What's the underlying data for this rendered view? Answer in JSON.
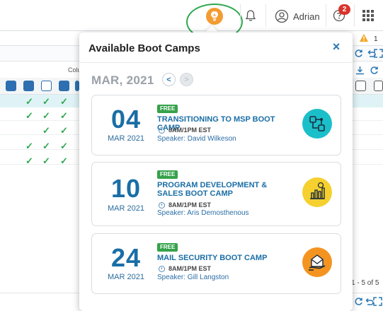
{
  "header": {
    "user_name": "Adrian",
    "help_badge_count": "2",
    "icons": [
      "lightbulb-icon",
      "bell-icon",
      "user-icon",
      "help-icon",
      "apps-grid-icon"
    ]
  },
  "background": {
    "column_label": "Colu",
    "warning_count": "1",
    "pager_text": "1 - 5 of 5"
  },
  "panel": {
    "title": "Available Boot Camps",
    "close_label": "×",
    "month": "MAR, 2021",
    "prev_label": "<",
    "next_label": ">",
    "camps": [
      {
        "day": "04",
        "month_year": "MAR 2021",
        "badge": "FREE",
        "title": "TRANSITIONING TO MSP BOOT CAMP",
        "time": "8AM/1PM EST",
        "speaker": "Speaker: David Wilkeson",
        "icon": "process-flow-icon",
        "icon_color": "#1bbfc9"
      },
      {
        "day": "10",
        "month_year": "MAR 2021",
        "badge": "FREE",
        "title": "PROGRAM DEVELOPMENT & SALES BOOT CAMP",
        "time": "8AM/1PM EST",
        "speaker": "Speaker: Aris Demosthenous",
        "icon": "sales-chart-icon",
        "icon_color": "#f5d02f"
      },
      {
        "day": "24",
        "month_year": "MAR 2021",
        "badge": "FREE",
        "title": "MAIL SECURITY BOOT CAMP",
        "time": "8AM/1PM EST",
        "speaker": "Speaker: Gill Langston",
        "icon": "secure-mail-icon",
        "icon_color": "#f39421"
      }
    ]
  },
  "colors": {
    "accent_blue": "#1a6ea6",
    "free_green": "#35a24b",
    "highlight_circle": "#2fa84f",
    "bulb_orange": "#f39c32",
    "badge_red": "#d9342b"
  }
}
